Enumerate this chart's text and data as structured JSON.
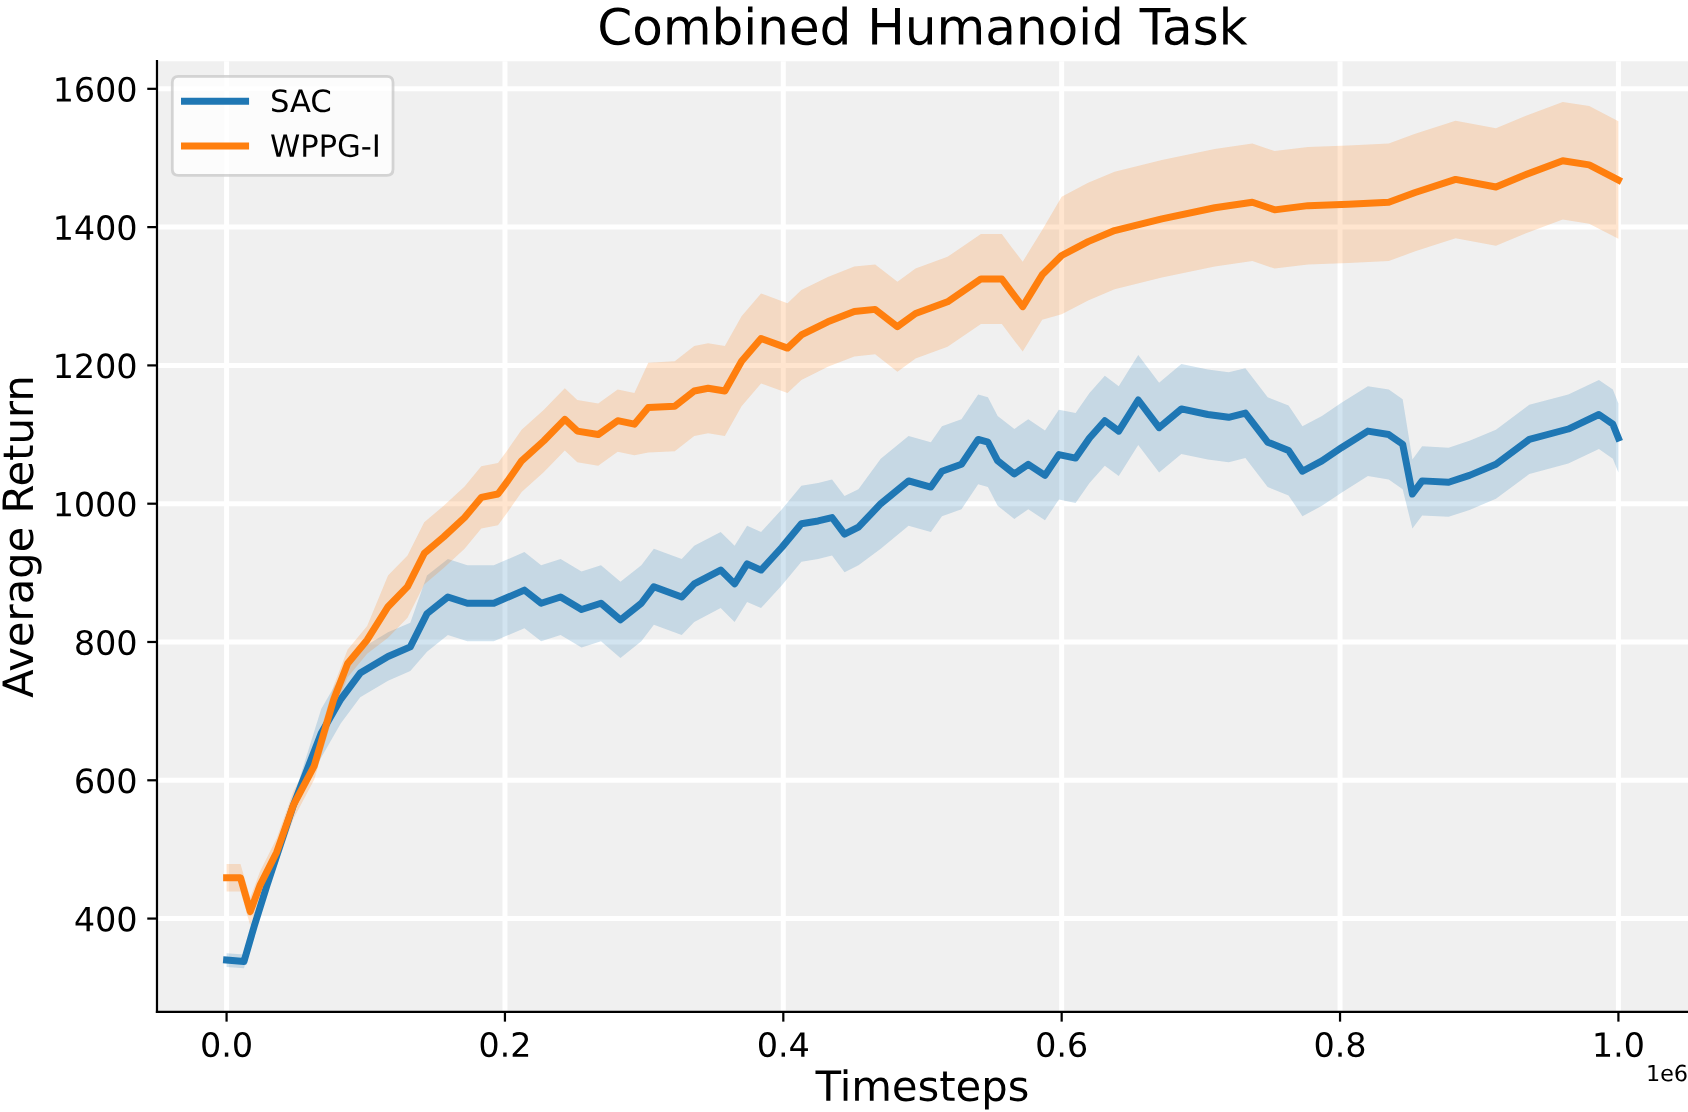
{
  "chart_data": {
    "type": "line",
    "title": "Combined Humanoid Task",
    "xlabel": "Timesteps",
    "ylabel": "Average Return",
    "annotations": [
      "1e6"
    ],
    "xlim": [
      -0.05,
      1.05
    ],
    "ylim": [
      265,
      1640
    ],
    "xticks": [
      {
        "value": 0,
        "label": "0.0"
      },
      0.2,
      0.4,
      0.6,
      0.8,
      {
        "value": 1,
        "label": "1.0"
      }
    ],
    "yticks": [
      400,
      600,
      800,
      1000,
      1200,
      1400,
      1600
    ],
    "grid": true,
    "legend": "top left",
    "marker": "none",
    "line_style": "solid",
    "series": [
      {
        "name": "SAC",
        "color": "#1f77b4",
        "x": [
          0,
          0.0125,
          0.02,
          0.029,
          0.048,
          0.068,
          0.082,
          0.096,
          0.116,
          0.132,
          0.144,
          0.159,
          0.173,
          0.192,
          0.214,
          0.226,
          0.24,
          0.255,
          0.269,
          0.283,
          0.298,
          0.307,
          0.327,
          0.336,
          0.355,
          0.365,
          0.374,
          0.384,
          0.399,
          0.413,
          0.425,
          0.435,
          0.444,
          0.454,
          0.47,
          0.49,
          0.506,
          0.514,
          0.528,
          0.54,
          0.547,
          0.554,
          0.566,
          0.576,
          0.588,
          0.598,
          0.61,
          0.62,
          0.631,
          0.641,
          0.655,
          0.67,
          0.686,
          0.705,
          0.72,
          0.732,
          0.748,
          0.763,
          0.773,
          0.787,
          0.801,
          0.82,
          0.835,
          0.845,
          0.852,
          0.859,
          0.878,
          0.893,
          0.912,
          0.936,
          0.964,
          0.986,
          0.996,
          1.0
        ],
        "values": [
          340,
          338,
          390,
          448,
          564,
          668,
          717,
          755,
          779,
          793,
          841,
          865,
          856,
          856,
          875,
          856,
          865,
          847,
          856,
          832,
          856,
          880,
          865,
          884,
          904,
          884,
          913,
          904,
          937,
          971,
          975,
          980,
          956,
          966,
          1000,
          1033,
          1024,
          1047,
          1057,
          1093,
          1089,
          1062,
          1043,
          1057,
          1041,
          1071,
          1066,
          1095,
          1120,
          1105,
          1150,
          1110,
          1137,
          1129,
          1125,
          1131,
          1089,
          1077,
          1047,
          1062,
          1081,
          1105,
          1100,
          1086,
          1014,
          1033,
          1031,
          1041,
          1057,
          1093,
          1108,
          1129,
          1115,
          1095
        ],
        "lower": [
          330,
          328,
          380,
          438,
          554,
          633,
          682,
          720,
          744,
          758,
          786,
          810,
          801,
          801,
          820,
          801,
          810,
          792,
          801,
          777,
          801,
          825,
          810,
          829,
          849,
          829,
          858,
          849,
          882,
          916,
          920,
          925,
          901,
          911,
          935,
          968,
          959,
          982,
          992,
          1028,
          1024,
          997,
          978,
          992,
          976,
          1006,
          1001,
          1030,
          1055,
          1040,
          1085,
          1045,
          1072,
          1064,
          1060,
          1066,
          1024,
          1012,
          982,
          997,
          1016,
          1040,
          1035,
          1021,
          964,
          983,
          981,
          991,
          1007,
          1043,
          1058,
          1079,
          1065,
          1045
        ],
        "upper": [
          350,
          348,
          400,
          458,
          574,
          703,
          752,
          790,
          814,
          828,
          896,
          920,
          911,
          911,
          930,
          911,
          920,
          902,
          911,
          887,
          911,
          935,
          920,
          939,
          959,
          939,
          968,
          959,
          992,
          1026,
          1030,
          1035,
          1011,
          1021,
          1065,
          1098,
          1089,
          1112,
          1122,
          1158,
          1154,
          1127,
          1108,
          1122,
          1106,
          1136,
          1131,
          1160,
          1185,
          1170,
          1215,
          1175,
          1202,
          1194,
          1190,
          1196,
          1154,
          1142,
          1112,
          1127,
          1146,
          1170,
          1165,
          1151,
          1064,
          1083,
          1081,
          1091,
          1107,
          1143,
          1158,
          1179,
          1165,
          1145
        ]
      },
      {
        "name": "WPPG-I",
        "color": "#ff7f0e",
        "x": [
          0,
          0.01,
          0.017,
          0.024,
          0.036,
          0.048,
          0.063,
          0.077,
          0.087,
          0.101,
          0.116,
          0.13,
          0.142,
          0.156,
          0.171,
          0.183,
          0.195,
          0.202,
          0.212,
          0.228,
          0.243,
          0.252,
          0.267,
          0.281,
          0.293,
          0.303,
          0.322,
          0.336,
          0.346,
          0.358,
          0.37,
          0.384,
          0.403,
          0.413,
          0.432,
          0.451,
          0.466,
          0.482,
          0.495,
          0.518,
          0.542,
          0.557,
          0.564,
          0.572,
          0.586,
          0.6,
          0.619,
          0.638,
          0.672,
          0.71,
          0.737,
          0.753,
          0.777,
          0.806,
          0.835,
          0.854,
          0.883,
          0.912,
          0.931,
          0.96,
          0.979,
          1.0
        ],
        "values": [
          459,
          459,
          410,
          448,
          496,
          564,
          621,
          717,
          769,
          803,
          851,
          880,
          928,
          952,
          980,
          1009,
          1014,
          1033,
          1062,
          1091,
          1122,
          1105,
          1100,
          1120,
          1115,
          1139,
          1141,
          1163,
          1167,
          1163,
          1206,
          1239,
          1225,
          1244,
          1263,
          1278,
          1281,
          1256,
          1275,
          1292,
          1325,
          1325,
          1306,
          1285,
          1331,
          1359,
          1379,
          1395,
          1412,
          1428,
          1436,
          1425,
          1431,
          1433,
          1436,
          1450,
          1469,
          1458,
          1474,
          1496,
          1490,
          1468
        ],
        "lower": [
          439,
          439,
          390,
          428,
          476,
          544,
          601,
          697,
          749,
          783,
          806,
          835,
          883,
          907,
          935,
          964,
          969,
          988,
          1017,
          1046,
          1077,
          1060,
          1055,
          1075,
          1070,
          1074,
          1076,
          1098,
          1102,
          1098,
          1141,
          1174,
          1160,
          1179,
          1198,
          1213,
          1216,
          1191,
          1210,
          1227,
          1260,
          1260,
          1241,
          1220,
          1266,
          1274,
          1294,
          1310,
          1327,
          1343,
          1351,
          1340,
          1346,
          1348,
          1351,
          1365,
          1384,
          1373,
          1389,
          1411,
          1405,
          1383
        ],
        "upper": [
          479,
          479,
          430,
          468,
          516,
          584,
          641,
          737,
          789,
          823,
          896,
          925,
          973,
          997,
          1025,
          1054,
          1059,
          1078,
          1107,
          1136,
          1167,
          1150,
          1145,
          1165,
          1160,
          1204,
          1206,
          1228,
          1232,
          1228,
          1271,
          1304,
          1290,
          1309,
          1328,
          1343,
          1346,
          1321,
          1340,
          1357,
          1390,
          1390,
          1371,
          1350,
          1396,
          1444,
          1464,
          1480,
          1497,
          1513,
          1521,
          1510,
          1516,
          1518,
          1521,
          1535,
          1554,
          1543,
          1559,
          1581,
          1575,
          1553
        ]
      }
    ]
  }
}
